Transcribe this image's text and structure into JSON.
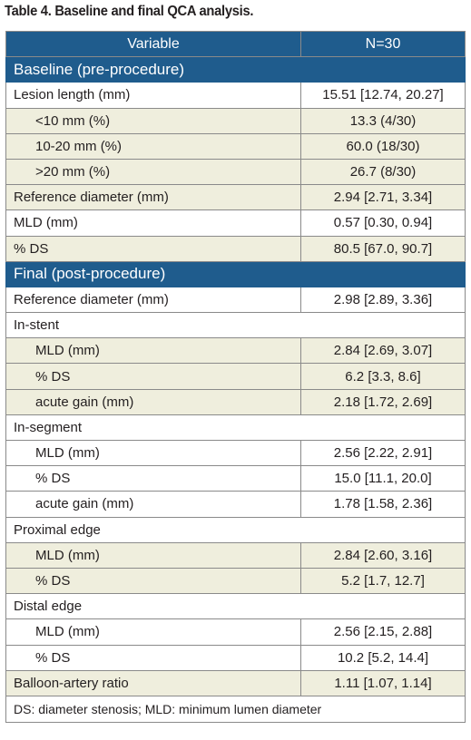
{
  "title": "Table 4. Baseline and final QCA analysis.",
  "header": {
    "variable": "Variable",
    "n": "N=30"
  },
  "sections": {
    "baseline": "Baseline (pre-procedure)",
    "final": "Final (post-procedure)"
  },
  "rows": [
    {
      "label": "Lesion length (mm)",
      "value": "15.51 [12.74, 20.27]"
    },
    {
      "label": "<10 mm (%)",
      "value": "13.3 (4/30)"
    },
    {
      "label": "10-20 mm (%)",
      "value": "60.0 (18/30)"
    },
    {
      "label": ">20 mm (%)",
      "value": "26.7 (8/30)"
    },
    {
      "label": "Reference diameter (mm)",
      "value": "2.94 [2.71, 3.34]"
    },
    {
      "label": "MLD (mm)",
      "value": "0.57 [0.30, 0.94]"
    },
    {
      "label": "% DS",
      "value": "80.5 [67.0, 90.7]"
    },
    {
      "label": "Reference diameter (mm)",
      "value": "2.98 [2.89, 3.36]"
    },
    {
      "label": "In-stent",
      "value": ""
    },
    {
      "label": "MLD (mm)",
      "value": "2.84 [2.69, 3.07]"
    },
    {
      "label": "% DS",
      "value": "6.2 [3.3, 8.6]"
    },
    {
      "label": "acute gain (mm)",
      "value": "2.18 [1.72, 2.69]"
    },
    {
      "label": "In-segment",
      "value": ""
    },
    {
      "label": "MLD (mm)",
      "value": "2.56 [2.22, 2.91]"
    },
    {
      "label": "% DS",
      "value": "15.0 [11.1, 20.0]"
    },
    {
      "label": "acute gain (mm)",
      "value": "1.78 [1.58, 2.36]"
    },
    {
      "label": "Proximal edge",
      "value": ""
    },
    {
      "label": "MLD (mm)",
      "value": "2.84 [2.60, 3.16]"
    },
    {
      "label": "% DS",
      "value": "5.2 [1.7, 12.7]"
    },
    {
      "label": "Distal edge",
      "value": ""
    },
    {
      "label": "MLD (mm)",
      "value": "2.56 [2.15, 2.88]"
    },
    {
      "label": "% DS",
      "value": "10.2 [5.2, 14.4]"
    },
    {
      "label": "Balloon-artery ratio",
      "value": "1.11 [1.07, 1.14]"
    }
  ],
  "footnote": "DS: diameter stenosis; MLD: minimum lumen diameter",
  "colors": {
    "header": "#1f5c8d",
    "shade": "#efeedd",
    "border": "#8a8a8a"
  }
}
